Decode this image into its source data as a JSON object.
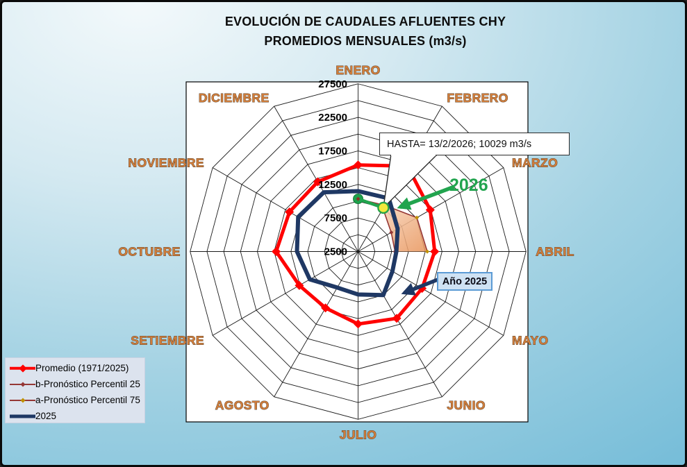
{
  "title": {
    "line1": "EVOLUCIÓN DE CAUDALES AFLUENTES CHY",
    "line2": "PROMEDIOS MENSUALES (m3/s)"
  },
  "chart_data": {
    "type": "radar",
    "categories": [
      "ENERO",
      "FEBRERO",
      "MARZO",
      "ABRIL",
      "MAYO",
      "JUNIO",
      "JULIO",
      "AGOSTO",
      "SETIEMBRE",
      "OCTUBRE",
      "NOVIEMBRE",
      "DICIEMBRE"
    ],
    "axis": {
      "min": 2500,
      "max": 27500,
      "ring_step": 2500,
      "label_step": 5000,
      "tick_values": [
        2500,
        7500,
        12500,
        17500,
        22500,
        27500
      ],
      "tick_labels": [
        "2500",
        "7500",
        "12500",
        "17500",
        "22500",
        "27500"
      ],
      "unit": "m3/s"
    },
    "series": [
      {
        "name": "Promedio (1971/2025)",
        "color": "#FF0000",
        "width": 5,
        "marker": "diamond",
        "closed": true,
        "values": [
          15400,
          17200,
          14900,
          13900,
          13500,
          14000,
          13300,
          12200,
          12600,
          14700,
          14300,
          14500
        ]
      },
      {
        "name": "b-Pronóstico Percentil 25",
        "color": "#953735",
        "marker_color": "#953735",
        "width": 1.6,
        "marker": "small-diamond",
        "closed": false,
        "values": [
          10350,
          9900,
          8200,
          8000,
          null,
          null,
          null,
          null,
          null,
          null,
          null,
          null
        ]
      },
      {
        "name": "a-Pronóstico Percentil 75",
        "color": "#953735",
        "marker_color": "#bf9000",
        "width": 1.6,
        "marker": "small-diamond",
        "closed": false,
        "values": [
          10350,
          10450,
          12600,
          12800,
          null,
          null,
          null,
          null,
          null,
          null,
          null,
          null
        ]
      },
      {
        "name": "2025",
        "color": "#1F3864",
        "width": 6,
        "marker": "none",
        "closed": true,
        "values": [
          11500,
          11650,
          9300,
          8200,
          8400,
          10000,
          8900,
          8700,
          10800,
          11600,
          12800,
          12700
        ]
      },
      {
        "name": "2026",
        "color": "#21A44E",
        "width": 4.5,
        "marker": "circle",
        "closed": false,
        "values": [
          10350,
          10029,
          null,
          null,
          null,
          null,
          null,
          null,
          null,
          null,
          null,
          null
        ]
      }
    ],
    "forecast_fill": {
      "between": [
        "b-Pronóstico Percentil 25",
        "a-Pronóstico Percentil 75"
      ],
      "color_from": "#fce8d8",
      "color_to": "#e89a5f"
    },
    "legend_position": "bottom-left",
    "grid": true
  },
  "annotations": {
    "callout": {
      "text": "HASTA= 13/2/2026; 10029 m3/s",
      "points_to_value": 10029,
      "points_to_month": "FEBRERO"
    },
    "year2026": {
      "text": "2026",
      "color": "#21A44E"
    },
    "year2025": {
      "text": "Año 2025"
    }
  },
  "legend": {
    "items": [
      {
        "label": "Promedio (1971/2025)",
        "color": "#FF0000"
      },
      {
        "label": "b-Pronóstico Percentil 25",
        "color": "#953735"
      },
      {
        "label": "a-Pronóstico Percentil 75",
        "color": "#953735",
        "marker_color": "#bf9000"
      },
      {
        "label": "2025",
        "color": "#1F3864"
      }
    ]
  },
  "markers": {
    "green_dot_color": "#1ca14b",
    "yellow_dot_color": "#f2e93c",
    "month_label_color": "#D07D3B"
  }
}
